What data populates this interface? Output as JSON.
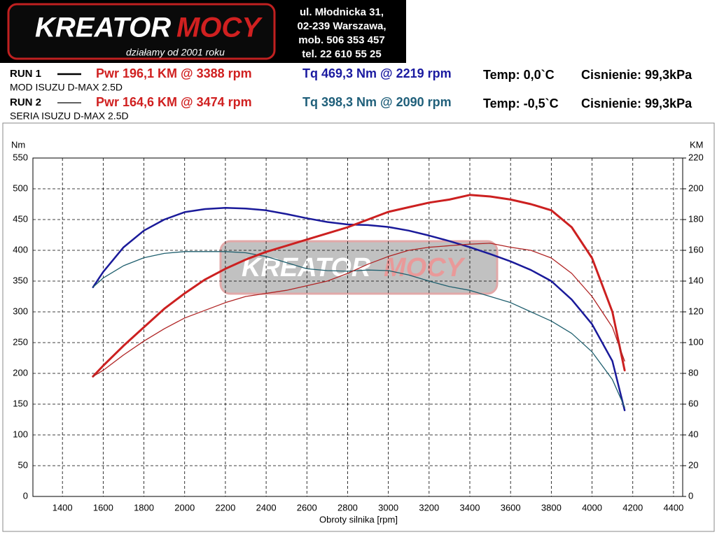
{
  "header": {
    "logo_word1": "KREATOR",
    "logo_word2": "MOCY",
    "tagline": "działamy od 2001 roku",
    "address": [
      "ul. Młodnicka 31,",
      "02-239  Warszawa,",
      "mob.  506 353 457",
      "tel.  22 610 55 25"
    ]
  },
  "runs": [
    {
      "label": "RUN 1",
      "name": "MOD ISUZU D-MAX 2.5D",
      "pwr": "Pwr  196,1 KM @ 3388 rpm",
      "tq": "Tq 469,3 Nm @ 2219 rpm",
      "temp": "Temp: 0,0`C",
      "pressure": "Cisnienie: 99,3kPa",
      "tq_color": "#1a1aa0"
    },
    {
      "label": "RUN 2",
      "name": "SERIA ISUZU D-MAX 2.5D",
      "pwr": "Pwr  164,6 KM @ 3474 rpm",
      "tq": "Tq 398,3 Nm @ 2090 rpm",
      "temp": "Temp: -0,5`C",
      "pressure": "Cisnienie: 99,3kPa",
      "tq_color": "#1f5f7a"
    }
  ],
  "chart_data": {
    "type": "line",
    "ylabel": "Nm",
    "y2label": "KM",
    "xlabel": "Obroty silnika [rpm]",
    "xlim": [
      1255,
      4445
    ],
    "xticks": [
      1400,
      1600,
      1800,
      2000,
      2200,
      2400,
      2600,
      2800,
      3000,
      3200,
      3400,
      3600,
      3800,
      4000,
      4200,
      4400
    ],
    "ylim": [
      0,
      550
    ],
    "yticks": [
      0,
      50,
      100,
      150,
      200,
      250,
      300,
      350,
      400,
      450,
      500,
      550
    ],
    "y2lim": [
      0,
      220
    ],
    "y2ticks": [
      0,
      20,
      40,
      60,
      80,
      100,
      120,
      140,
      160,
      180,
      200,
      220
    ],
    "grid": true,
    "series": [
      {
        "name": "RUN 1",
        "color": "#1a1a9a",
        "width": 2.5,
        "axis": "y",
        "x": [
          1550,
          1600,
          1700,
          1800,
          1900,
          2000,
          2100,
          2200,
          2300,
          2400,
          2500,
          2600,
          2700,
          2800,
          2900,
          3000,
          3100,
          3200,
          3300,
          3400,
          3500,
          3600,
          3700,
          3800,
          3900,
          4000,
          4100,
          4160
        ],
        "values": [
          340,
          365,
          405,
          432,
          450,
          462,
          467,
          469,
          468,
          465,
          459,
          452,
          446,
          442,
          441,
          438,
          432,
          424,
          415,
          405,
          394,
          382,
          368,
          350,
          320,
          280,
          220,
          140
        ]
      },
      {
        "name": "RUN 2",
        "color": "#1f5f6e",
        "width": 1.3,
        "axis": "y",
        "x": [
          1550,
          1600,
          1700,
          1800,
          1900,
          2000,
          2100,
          2200,
          2300,
          2400,
          2500,
          2600,
          2700,
          2800,
          2900,
          3000,
          3100,
          3200,
          3300,
          3400,
          3500,
          3600,
          3700,
          3800,
          3900,
          4000,
          4100,
          4160
        ],
        "values": [
          340,
          355,
          375,
          388,
          395,
          398,
          398,
          398,
          396,
          390,
          380,
          370,
          367,
          366,
          368,
          367,
          360,
          350,
          341,
          335,
          325,
          315,
          300,
          285,
          265,
          235,
          190,
          145
        ]
      },
      {
        "name": "RUN 1",
        "color": "#cc2020",
        "width": 3,
        "axis": "y2",
        "x": [
          1550,
          1600,
          1700,
          1800,
          1900,
          2000,
          2100,
          2200,
          2300,
          2400,
          2500,
          2600,
          2700,
          2800,
          2900,
          3000,
          3100,
          3200,
          3300,
          3400,
          3500,
          3600,
          3700,
          3800,
          3900,
          4000,
          4100,
          4160
        ],
        "values": [
          78,
          85,
          98,
          110,
          122,
          132,
          141,
          148,
          154,
          159,
          163,
          167,
          171,
          175,
          180,
          185,
          188,
          191,
          193,
          196,
          195,
          193,
          190,
          186,
          175,
          155,
          120,
          82
        ]
      },
      {
        "name": "RUN 2",
        "color": "#b02424",
        "width": 1.3,
        "axis": "y2",
        "x": [
          1550,
          1600,
          1700,
          1800,
          1900,
          2000,
          2100,
          2200,
          2300,
          2400,
          2500,
          2600,
          2700,
          2800,
          2900,
          3000,
          3100,
          3200,
          3300,
          3400,
          3500,
          3600,
          3700,
          3800,
          3900,
          4000,
          4100,
          4160
        ],
        "values": [
          78,
          82,
          92,
          101,
          109,
          116,
          121,
          126,
          130,
          132,
          134,
          137,
          140,
          145,
          151,
          156,
          160,
          162,
          163,
          164,
          164.6,
          162,
          160,
          155,
          145,
          130,
          110,
          88
        ]
      }
    ]
  }
}
